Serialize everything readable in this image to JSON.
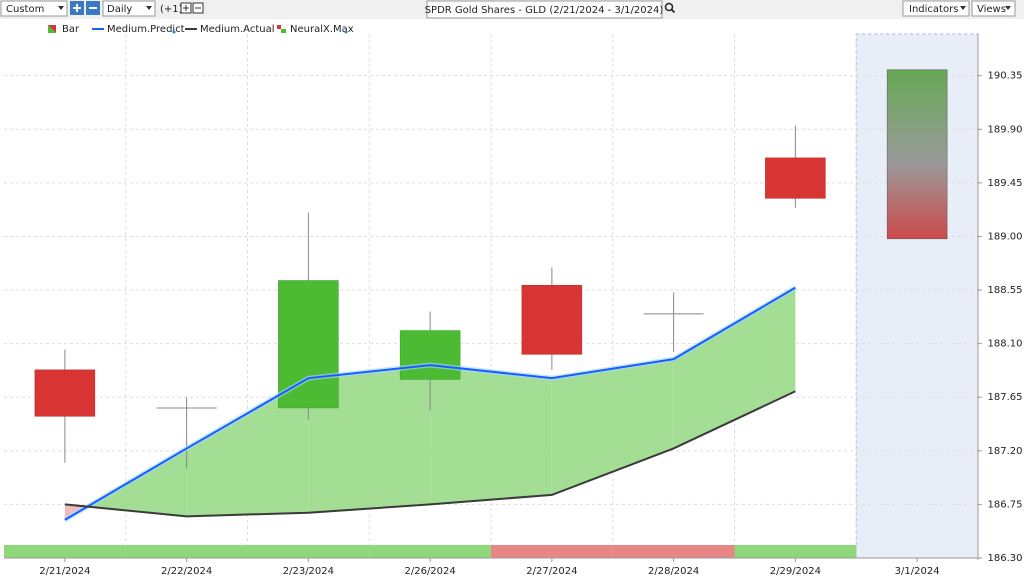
{
  "toolbar": {
    "period": "Custom",
    "interval": "Daily",
    "offset": "(+1)",
    "symbol": "SPDR Gold Shares - GLD (2/21/2024 - 3/1/2024)",
    "indicators": "Indicators",
    "views": "Views"
  },
  "chart_data": {
    "type": "candlestick",
    "categories": [
      "2/21/2024",
      "2/22/2024",
      "2/23/2024",
      "2/26/2024",
      "2/27/2024",
      "2/28/2024",
      "2/29/2024",
      "3/1/2024"
    ],
    "bar_name": "Bar",
    "open": [
      187.88,
      187.56,
      187.56,
      187.8,
      188.59,
      188.35,
      189.66,
      null
    ],
    "high": [
      188.05,
      187.65,
      189.2,
      188.37,
      188.74,
      188.53,
      189.93,
      null
    ],
    "low": [
      187.1,
      187.05,
      187.46,
      187.54,
      187.88,
      188.03,
      189.24,
      null
    ],
    "close": [
      187.49,
      187.56,
      188.63,
      188.21,
      188.01,
      188.35,
      189.32,
      null
    ],
    "up_color": "#4cbb33",
    "down_color": "#d93434",
    "series": [
      {
        "name": "Medium.Predict",
        "color": "#1a5cff",
        "values": [
          186.62,
          187.22,
          187.81,
          187.92,
          187.81,
          187.97,
          188.57,
          null
        ]
      },
      {
        "name": "Medium.Actual",
        "color": "#3a3a3a",
        "values": [
          186.75,
          186.65,
          186.68,
          186.75,
          186.83,
          187.22,
          187.7,
          null
        ]
      }
    ],
    "fill_colors": [
      "#9fdb8e",
      "#f0b8b8"
    ],
    "neuralx": {
      "name": "NeuralX.Max",
      "high": [
        null,
        null,
        null,
        null,
        null,
        null,
        null,
        190.4
      ],
      "low": [
        null,
        null,
        null,
        null,
        null,
        null,
        null,
        188.98
      ]
    },
    "strip_colors": [
      "#8fd87a",
      "#8fd87a",
      "#8fd87a",
      "#8fd87a",
      "#e88585",
      "#e88585",
      "#8fd87a",
      null
    ],
    "ylim": [
      186.3,
      190.7
    ],
    "yticks": [
      {
        "value": 186.3,
        "label": "186.30"
      },
      186.75,
      {
        "value": 187.2,
        "label": "187.20"
      },
      187.65,
      {
        "value": 188.1,
        "label": "188.10"
      },
      188.55,
      {
        "value": 189.0,
        "label": "189.00"
      },
      189.45,
      {
        "value": 189.9,
        "label": "189.90"
      },
      190.35
    ],
    "grid": true
  }
}
